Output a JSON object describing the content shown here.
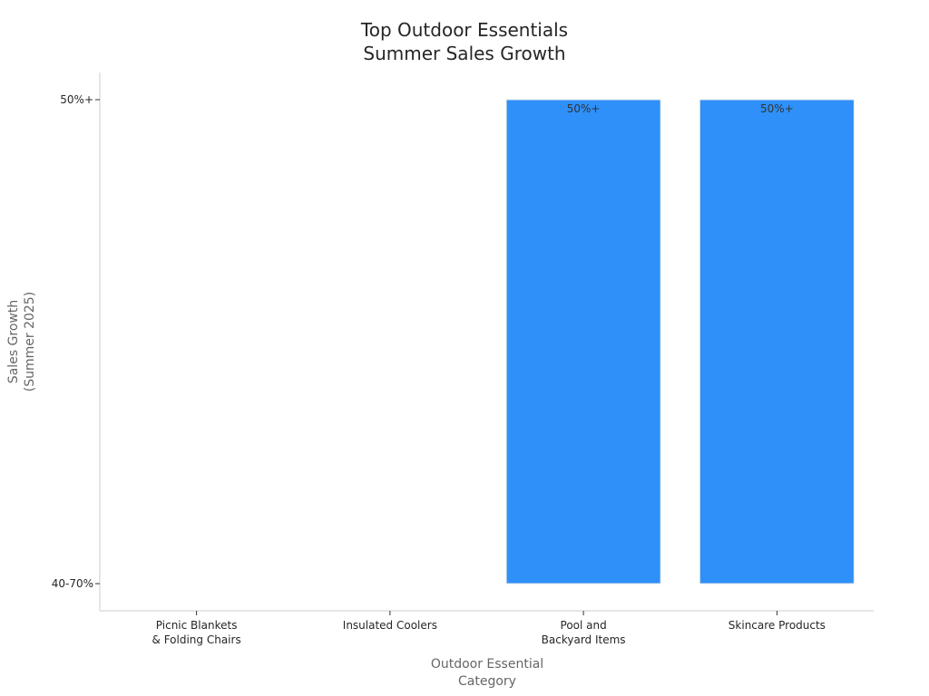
{
  "chart_data": {
    "type": "bar",
    "title": [
      "Top Outdoor Essentials",
      "Summer Sales Growth"
    ],
    "xlabel": [
      "Outdoor Essential",
      "Category"
    ],
    "ylabel": [
      "Sales Growth",
      "(Summer 2025)"
    ],
    "categories": [
      [
        "Picnic Blankets",
        "& Folding Chairs"
      ],
      [
        "Insulated Coolers"
      ],
      [
        "Pool and",
        "Backyard Items"
      ],
      [
        "Skincare Products"
      ]
    ],
    "y_categories": [
      "40-70%",
      "50%+"
    ],
    "values": [
      null,
      null,
      "50%+",
      "50%+"
    ],
    "bar_base": "40-70%",
    "data_labels": [
      "",
      "",
      "50%+",
      "50%+"
    ],
    "bar_color": "#2E90F8",
    "grid": false,
    "legend": "none"
  }
}
